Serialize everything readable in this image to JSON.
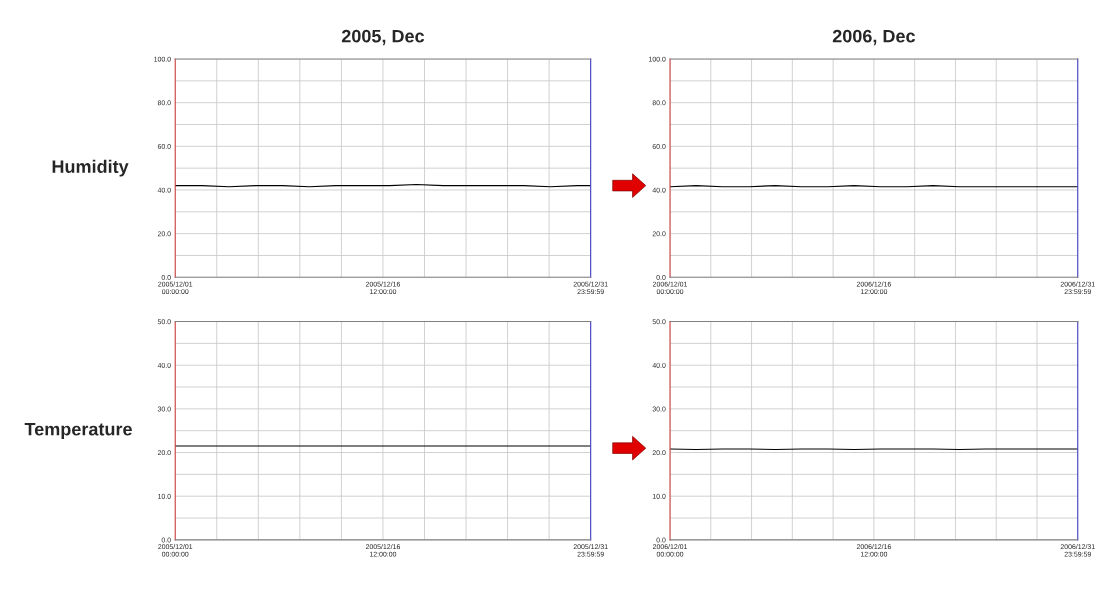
{
  "chart_data": [
    {
      "type": "line",
      "title": "2005, Dec",
      "ylabel": "Humidity",
      "x": [
        "2005-12-01T00:00",
        "2005-12-03T00:00",
        "2005-12-05T00:00",
        "2005-12-07T00:00",
        "2005-12-09T00:00",
        "2005-12-11T00:00",
        "2005-12-13T00:00",
        "2005-12-15T00:00",
        "2005-12-17T00:00",
        "2005-12-19T00:00",
        "2005-12-21T00:00",
        "2005-12-23T00:00",
        "2005-12-25T00:00",
        "2005-12-27T00:00",
        "2005-12-29T00:00",
        "2005-12-31T00:00",
        "2005-12-31T23:59"
      ],
      "series": [
        {
          "color": "#000000",
          "values": [
            42,
            42,
            41.5,
            42,
            42,
            41.5,
            42,
            42,
            42,
            42.5,
            42,
            42,
            42,
            42,
            41.5,
            42,
            42
          ]
        }
      ],
      "xlim": [
        "2005-12-01T00:00",
        "2005-12-31T23:59"
      ],
      "xticks": [
        {
          "value": "2005-12-01T00:00",
          "label": "2005/12/01\n00:00:00"
        },
        {
          "value": "2005-12-16T12:00",
          "label": "2005/12/16\n12:00:00"
        },
        {
          "value": "2005-12-31T23:59",
          "label": "2005/12/31\n23:59:59"
        }
      ],
      "ylim": [
        0,
        100
      ],
      "yticks": [
        {
          "value": 0,
          "label": "0.0"
        },
        {
          "value": 20,
          "label": "20.0"
        },
        {
          "value": 40,
          "label": "40.0"
        },
        {
          "value": 60,
          "label": "60.0"
        },
        {
          "value": 80,
          "label": "80.0"
        },
        {
          "value": 100,
          "label": "100.0"
        }
      ],
      "grid": true,
      "marker": "none",
      "line_style": "solid"
    },
    {
      "type": "line",
      "title": "2006, Dec",
      "x": [
        "2006-12-01T00:00",
        "2006-12-03T00:00",
        "2006-12-05T00:00",
        "2006-12-07T00:00",
        "2006-12-09T00:00",
        "2006-12-11T00:00",
        "2006-12-13T00:00",
        "2006-12-15T00:00",
        "2006-12-17T00:00",
        "2006-12-19T00:00",
        "2006-12-21T00:00",
        "2006-12-23T00:00",
        "2006-12-25T00:00",
        "2006-12-27T00:00",
        "2006-12-29T00:00",
        "2006-12-31T00:00",
        "2006-12-31T23:59"
      ],
      "series": [
        {
          "color": "#000000",
          "values": [
            41.5,
            42,
            41.5,
            41.5,
            42,
            41.5,
            41.5,
            42,
            41.5,
            41.5,
            42,
            41.5,
            41.5,
            41.5,
            41.5,
            41.5,
            41.5
          ]
        }
      ],
      "xlim": [
        "2006-12-01T00:00",
        "2006-12-31T23:59"
      ],
      "xticks": [
        {
          "value": "2006-12-01T00:00",
          "label": "2006/12/01\n00:00:00"
        },
        {
          "value": "2006-12-16T12:00",
          "label": "2006/12/16\n12:00:00"
        },
        {
          "value": "2006-12-31T23:59",
          "label": "2006/12/31\n23:59:59"
        }
      ],
      "ylim": [
        0,
        100
      ],
      "yticks": [
        {
          "value": 0,
          "label": "0.0"
        },
        {
          "value": 20,
          "label": "20.0"
        },
        {
          "value": 40,
          "label": "40.0"
        },
        {
          "value": 60,
          "label": "60.0"
        },
        {
          "value": 80,
          "label": "80.0"
        },
        {
          "value": 100,
          "label": "100.0"
        }
      ],
      "grid": true,
      "marker": "none",
      "line_style": "solid"
    },
    {
      "type": "line",
      "ylabel": "Temperature",
      "x": [
        "2005-12-01T00:00",
        "2005-12-03T00:00",
        "2005-12-05T00:00",
        "2005-12-07T00:00",
        "2005-12-09T00:00",
        "2005-12-11T00:00",
        "2005-12-13T00:00",
        "2005-12-15T00:00",
        "2005-12-17T00:00",
        "2005-12-19T00:00",
        "2005-12-21T00:00",
        "2005-12-23T00:00",
        "2005-12-25T00:00",
        "2005-12-27T00:00",
        "2005-12-29T00:00",
        "2005-12-31T00:00",
        "2005-12-31T23:59"
      ],
      "series": [
        {
          "color": "#000000",
          "values": [
            21.5,
            21.5,
            21.5,
            21.5,
            21.5,
            21.5,
            21.5,
            21.5,
            21.5,
            21.5,
            21.5,
            21.5,
            21.5,
            21.5,
            21.5,
            21.5,
            21.5
          ]
        }
      ],
      "xlim": [
        "2005-12-01T00:00",
        "2005-12-31T23:59"
      ],
      "xticks": [
        {
          "value": "2005-12-01T00:00",
          "label": "2005/12/01\n00:00:00"
        },
        {
          "value": "2005-12-16T12:00",
          "label": "2005/12/16\n12:00:00"
        },
        {
          "value": "2005-12-31T23:59",
          "label": "2005/12/31\n23:59:59"
        }
      ],
      "ylim": [
        0,
        50
      ],
      "yticks": [
        {
          "value": 0,
          "label": "0.0"
        },
        {
          "value": 10,
          "label": "10.0"
        },
        {
          "value": 20,
          "label": "20.0"
        },
        {
          "value": 30,
          "label": "30.0"
        },
        {
          "value": 40,
          "label": "40.0"
        },
        {
          "value": 50,
          "label": "50.0"
        }
      ],
      "grid": true,
      "marker": "none",
      "line_style": "solid"
    },
    {
      "type": "line",
      "x": [
        "2006-12-01T00:00",
        "2006-12-03T00:00",
        "2006-12-05T00:00",
        "2006-12-07T00:00",
        "2006-12-09T00:00",
        "2006-12-11T00:00",
        "2006-12-13T00:00",
        "2006-12-15T00:00",
        "2006-12-17T00:00",
        "2006-12-19T00:00",
        "2006-12-21T00:00",
        "2006-12-23T00:00",
        "2006-12-25T00:00",
        "2006-12-27T00:00",
        "2006-12-29T00:00",
        "2006-12-31T00:00",
        "2006-12-31T23:59"
      ],
      "series": [
        {
          "color": "#000000",
          "values": [
            20.8,
            20.7,
            20.8,
            20.8,
            20.7,
            20.8,
            20.8,
            20.7,
            20.8,
            20.8,
            20.8,
            20.7,
            20.8,
            20.8,
            20.8,
            20.8,
            20.8
          ]
        }
      ],
      "xlim": [
        "2006-12-01T00:00",
        "2006-12-31T23:59"
      ],
      "xticks": [
        {
          "value": "2006-12-01T00:00",
          "label": "2006/12/01\n00:00:00"
        },
        {
          "value": "2006-12-16T12:00",
          "label": "2006/12/16\n12:00:00"
        },
        {
          "value": "2006-12-31T23:59",
          "label": "2006/12/31\n23:59:59"
        }
      ],
      "ylim": [
        0,
        50
      ],
      "yticks": [
        {
          "value": 0,
          "label": "0.0"
        },
        {
          "value": 10,
          "label": "10.0"
        },
        {
          "value": 20,
          "label": "20.0"
        },
        {
          "value": 30,
          "label": "30.0"
        },
        {
          "value": 40,
          "label": "40.0"
        },
        {
          "value": 50,
          "label": "50.0"
        }
      ],
      "grid": true,
      "marker": "none",
      "line_style": "solid"
    }
  ]
}
